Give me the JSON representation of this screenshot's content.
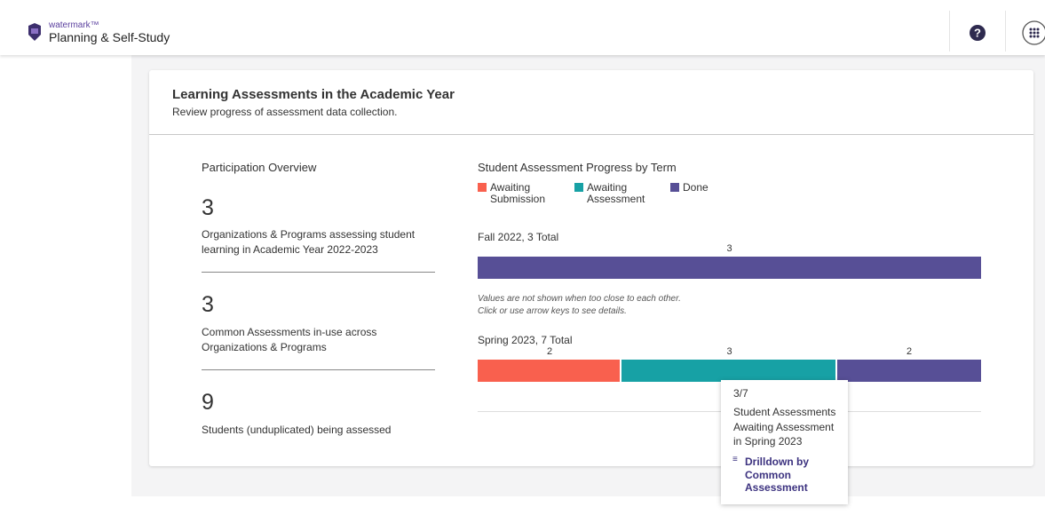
{
  "header": {
    "brand": "watermark™",
    "app": "Planning & Self-Study"
  },
  "card": {
    "title": "Learning Assessments in the Academic Year",
    "subtitle": "Review progress of assessment data collection."
  },
  "overview": {
    "title": "Participation Overview",
    "stats": [
      {
        "value": 3,
        "label": "Organizations & Programs assessing student learning in Academic Year 2022-2023"
      },
      {
        "value": 3,
        "label": "Common Assessments in-use across Organizations & Programs"
      },
      {
        "value": 9,
        "label": "Students (unduplicated) being assessed"
      }
    ]
  },
  "chart_data": {
    "type": "bar",
    "orientation": "horizontal",
    "stacked": true,
    "title": "Student Assessment Progress by Term",
    "categories": [
      "Fall 2022, 3 Total",
      "Spring 2023, 7 Total"
    ],
    "series": [
      {
        "name": "Awaiting Submission",
        "color": "#f9604e",
        "values": [
          0,
          2
        ]
      },
      {
        "name": "Awaiting Assessment",
        "color": "#17a1a5",
        "values": [
          0,
          3
        ]
      },
      {
        "name": "Done",
        "color": "#574f96",
        "values": [
          3,
          2
        ]
      }
    ],
    "note": [
      "Values are not shown when too close to each other.",
      "Click or use arrow keys to see details."
    ]
  },
  "tooltip": {
    "fraction": "3/7",
    "text": "Student Assessments Awaiting Assessment in Spring 2023",
    "link": "Drilldown by Common Assessment"
  }
}
